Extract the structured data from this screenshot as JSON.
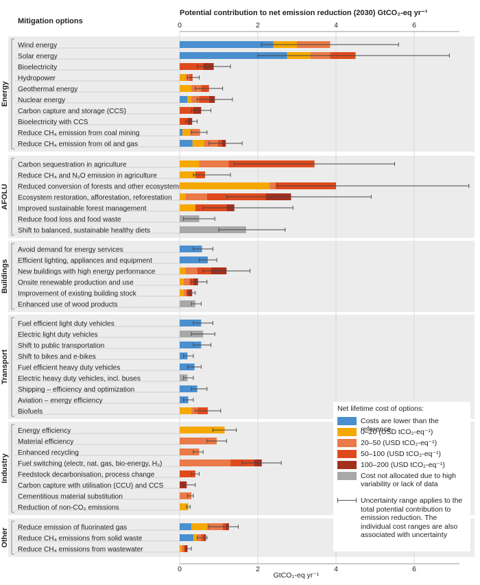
{
  "header": {
    "left_title": "Mitigation options",
    "top_title": "Potential contribution to net emission reduction (2030) GtCO₂-eq yr⁻¹",
    "bottom_unit": "GtCO₂-eq yr⁻¹"
  },
  "legend": {
    "title": "Net lifetime cost of options:",
    "items": [
      {
        "key": "lower",
        "label": "Costs are lower than the reference",
        "color": "#4a8fcf"
      },
      {
        "key": "c0_20",
        "label": "0–20 (USD tCO₂-eq⁻¹)",
        "color": "#f5a800"
      },
      {
        "key": "c20_50",
        "label": "20–50 (USD tCO₂-eq⁻¹)",
        "color": "#ea7a47"
      },
      {
        "key": "c50_100",
        "label": "50–100 (USD tCO₂-eq⁻¹)",
        "color": "#df4a1d"
      },
      {
        "key": "c100_200",
        "label": "100–200 (USD tCO₂-eq⁻¹)",
        "color": "#a3301e"
      },
      {
        "key": "na",
        "label": "Cost not allocated due to high variability or lack of data",
        "color": "#a8a8a8"
      }
    ],
    "uncertainty_text": "Uncertainty range applies to the total potential contribution to emission reduction. The individual cost ranges are also associated with uncertainty"
  },
  "chart_data": {
    "type": "bar",
    "orientation": "horizontal-stacked",
    "xlim": [
      0,
      7
    ],
    "xticks": [
      0,
      2,
      4,
      6
    ],
    "stack_order": [
      "lower",
      "c0_20",
      "c20_50",
      "c50_100",
      "c100_200",
      "na"
    ],
    "groups": [
      {
        "name": "Energy",
        "options": [
          {
            "label": "Wind energy",
            "values": {
              "lower": 2.4,
              "c0_20": 0.6,
              "c20_50": 0.85
            },
            "range": [
              2.1,
              5.6
            ]
          },
          {
            "label": "Solar energy",
            "values": {
              "lower": 2.75,
              "c0_20": 0.6,
              "c20_50": 0.5,
              "c50_100": 0.65
            },
            "range": [
              2.0,
              6.9
            ]
          },
          {
            "label": "Bioelectricity",
            "values": {
              "c50_100": 0.6,
              "c100_200": 0.27
            },
            "range": [
              0.45,
              1.3
            ]
          },
          {
            "label": "Hydropower",
            "values": {
              "c0_20": 0.15,
              "c20_50": 0.1,
              "c50_100": 0.08
            },
            "range": [
              0.2,
              0.5
            ]
          },
          {
            "label": "Geothermal energy",
            "values": {
              "c0_20": 0.3,
              "c20_50": 0.25,
              "c50_100": 0.2
            },
            "range": [
              0.4,
              1.1
            ]
          },
          {
            "label": "Nuclear energy",
            "values": {
              "lower": 0.2,
              "c0_20": 0.1,
              "c20_50": 0.2,
              "c50_100": 0.25,
              "c100_200": 0.15
            },
            "range": [
              0.45,
              1.35
            ]
          },
          {
            "label": "Carbon capture and storage (CCS)",
            "values": {
              "c50_100": 0.35,
              "c100_200": 0.2
            },
            "range": [
              0.3,
              0.8
            ]
          },
          {
            "label": "Bioelectricity with CCS",
            "values": {
              "c50_100": 0.2,
              "c100_200": 0.12
            },
            "range": [
              0.15,
              0.45
            ]
          },
          {
            "label": "Reduce CH₄ emission from coal mining",
            "values": {
              "lower": 0.07,
              "c0_20": 0.2,
              "c20_50": 0.25
            },
            "range": [
              0.3,
              0.7
            ]
          },
          {
            "label": "Reduce CH₄ emission from oil and gas",
            "values": {
              "lower": 0.33,
              "c0_20": 0.3,
              "c20_50": 0.35,
              "c50_100": 0.1,
              "c100_200": 0.1
            },
            "range": [
              0.75,
              1.6
            ]
          }
        ]
      },
      {
        "name": "AFOLU",
        "options": [
          {
            "label": "Carbon sequestration in agriculture",
            "values": {
              "c0_20": 0.5,
              "c20_50": 0.75,
              "c50_100": 2.2
            },
            "range": [
              1.4,
              5.5
            ]
          },
          {
            "label": "Reduce CH₄ and N₂O emission in agriculture",
            "values": {
              "c0_20": 0.4,
              "c50_100": 0.25
            },
            "range": [
              0.35,
              1.3
            ]
          },
          {
            "label": "Reduced conversion of forests and other ecosystems",
            "values": {
              "c0_20": 2.3,
              "c20_50": 0.15,
              "c50_100": 1.55
            },
            "range": [
              2.5,
              7.4
            ]
          },
          {
            "label": "Ecosystem restoration, afforestation, reforestation",
            "values": {
              "c0_20": 0.15,
              "c20_50": 0.55,
              "c50_100": 1.5,
              "c100_200": 0.65
            },
            "range": [
              1.2,
              4.9
            ]
          },
          {
            "label": "Improved sustainable forest management",
            "values": {
              "c0_20": 0.4,
              "c50_100": 0.8,
              "c100_200": 0.2
            },
            "range": [
              0.6,
              2.9
            ]
          },
          {
            "label": "Reduce food loss and food waste",
            "values": {
              "na": 0.5
            },
            "range": [
              0.1,
              0.9
            ]
          },
          {
            "label": "Shift to balanced, sustainable healthy diets",
            "values": {
              "na": 1.7
            },
            "range": [
              1.0,
              2.7
            ]
          }
        ]
      },
      {
        "name": "Buildings",
        "options": [
          {
            "label": "Avoid demand for energy services",
            "values": {
              "lower": 0.57
            },
            "range": [
              0.35,
              0.85
            ]
          },
          {
            "label": "Efficient lighting, appliances and equipment",
            "values": {
              "lower": 0.72
            },
            "range": [
              0.5,
              0.95
            ]
          },
          {
            "label": "New buildings with high energy performance",
            "values": {
              "c0_20": 0.15,
              "c20_50": 0.3,
              "c50_100": 0.35,
              "c100_200": 0.4
            },
            "range": [
              0.6,
              1.8
            ]
          },
          {
            "label": "Onsite renewable production and use",
            "values": {
              "c0_20": 0.1,
              "c20_50": 0.15,
              "c50_100": 0.1,
              "c100_200": 0.12
            },
            "range": [
              0.3,
              0.7
            ]
          },
          {
            "label": "Improvement of existing building stock",
            "values": {
              "c0_20": 0.1,
              "c20_50": 0.07,
              "c50_100": 0.05,
              "c100_200": 0.1
            },
            "range": [
              0.2,
              0.4
            ]
          },
          {
            "label": "Enhanced use of wood products",
            "values": {
              "na": 0.4
            },
            "range": [
              0.3,
              0.55
            ]
          }
        ]
      },
      {
        "name": "Transport",
        "options": [
          {
            "label": "Fuel efficient light duty vehicles",
            "values": {
              "lower": 0.55
            },
            "range": [
              0.35,
              0.85
            ]
          },
          {
            "label": "Electric light duty vehicles",
            "values": {
              "na": 0.6
            },
            "range": [
              0.3,
              0.9
            ]
          },
          {
            "label": "Shift to public transportation",
            "values": {
              "lower": 0.55
            },
            "range": [
              0.35,
              0.8
            ]
          },
          {
            "label": "Shift to bikes and e-bikes",
            "values": {
              "lower": 0.2
            },
            "range": [
              0.1,
              0.35
            ]
          },
          {
            "label": "Fuel efficient heavy duty vehicles",
            "values": {
              "lower": 0.38
            },
            "range": [
              0.2,
              0.55
            ]
          },
          {
            "label": "Electric heavy duty vehicles, incl. buses",
            "values": {
              "na": 0.2
            },
            "range": [
              0.1,
              0.35
            ]
          },
          {
            "label": "Shipping – efficiency and optimization",
            "values": {
              "lower": 0.45
            },
            "range": [
              0.3,
              0.7
            ]
          },
          {
            "label": "Aviation – energy efficiency",
            "values": {
              "lower": 0.22
            },
            "range": [
              0.1,
              0.35
            ]
          },
          {
            "label": "Biofuels",
            "values": {
              "c0_20": 0.3,
              "c20_50": 0.15,
              "c50_100": 0.27
            },
            "range": [
              0.4,
              1.05
            ]
          }
        ]
      },
      {
        "name": "Industry",
        "options": [
          {
            "label": "Energy efficiency",
            "values": {
              "c0_20": 1.15
            },
            "range": [
              0.85,
              1.45
            ]
          },
          {
            "label": "Material efficiency",
            "values": {
              "c20_50": 0.95
            },
            "range": [
              0.7,
              1.2
            ]
          },
          {
            "label": "Enhanced recycling",
            "values": {
              "c20_50": 0.5
            },
            "range": [
              0.35,
              0.6
            ]
          },
          {
            "label": "Fuel switching (electr, nat. gas, bio-energy, H₂)",
            "values": {
              "c20_50": 1.3,
              "c50_100": 0.6,
              "c100_200": 0.2
            },
            "range": [
              1.6,
              2.6
            ]
          },
          {
            "label": "Feedstock decarbonisation, process change",
            "values": {
              "c50_100": 0.4
            },
            "range": [
              0.3,
              0.5
            ]
          },
          {
            "label": "Carbon capture with utilisation (CCU) and CCS",
            "values": {
              "c100_200": 0.18
            },
            "range": [
              0.1,
              0.4
            ]
          },
          {
            "label": "Cementitious material substitution",
            "values": {
              "c20_50": 0.3
            },
            "range": [
              0.2,
              0.35
            ]
          },
          {
            "label": "Reduction of non-CO₂ emissions",
            "values": {
              "c0_20": 0.22
            },
            "range": [
              0.18,
              0.27
            ]
          }
        ]
      },
      {
        "name": "Other",
        "options": [
          {
            "label": "Reduce emission of fluorinated gas",
            "values": {
              "lower": 0.3,
              "c0_20": 0.4,
              "c20_50": 0.4,
              "c50_100": 0.08,
              "c100_200": 0.08
            },
            "range": [
              0.75,
              1.5
            ]
          },
          {
            "label": "Reduce CH₄ emissions from solid waste",
            "values": {
              "lower": 0.35,
              "c0_20": 0.1,
              "c20_50": 0.1,
              "c50_100": 0.07,
              "c100_200": 0.05
            },
            "range": [
              0.45,
              0.7
            ]
          },
          {
            "label": "Reduce CH₄ emissions from wastewater",
            "values": {
              "c0_20": 0.05,
              "c20_50": 0.05,
              "c50_100": 0.05,
              "c100_200": 0.05
            },
            "range": [
              0.15,
              0.3
            ]
          }
        ]
      }
    ]
  }
}
